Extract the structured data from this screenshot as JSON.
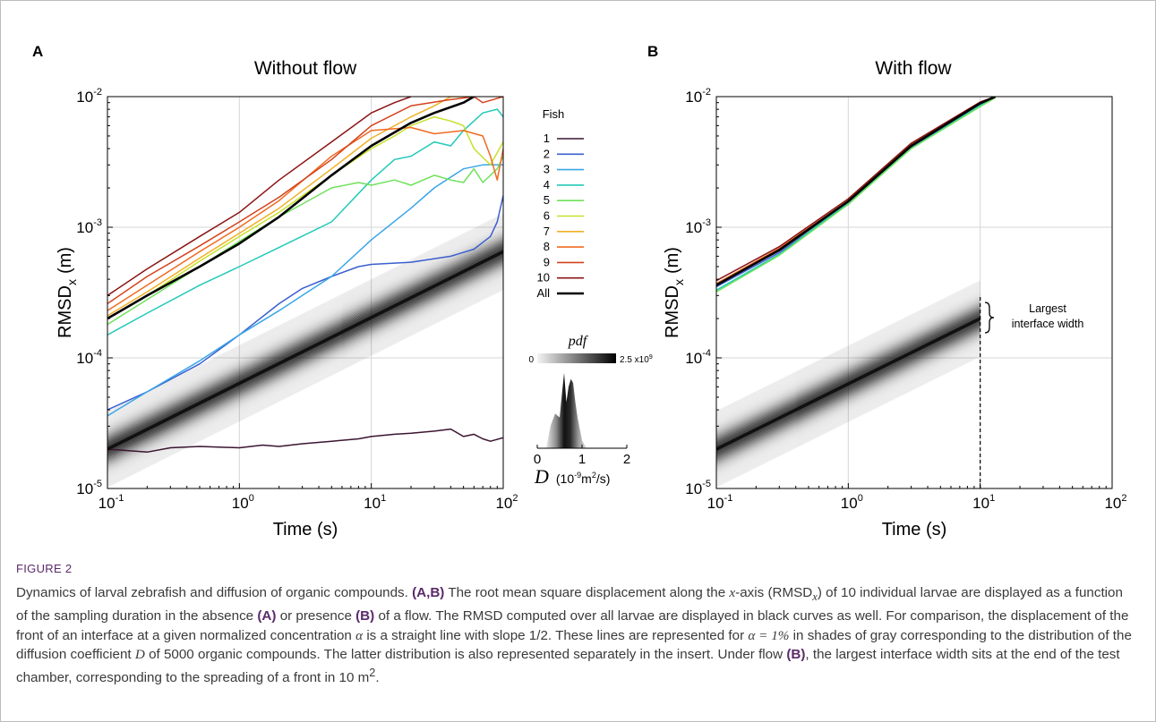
{
  "figure_label": "FIGURE 2",
  "caption": {
    "lead": "Dynamics of larval zebrafish and diffusion of organic compounds.",
    "refs_ab": "(A,B)",
    "s1": "The root mean square displacement along the",
    "x": "x",
    "s2": "-axis (RMSD",
    "sub_x": "x",
    "s3": ") of 10 individual larvae are displayed as a function of the sampling duration in the absence",
    "ref_a": "(A)",
    "s4": "or presence",
    "ref_b": "(B)",
    "s5": "of a flow. The RMSD computed over all larvae are displayed in black curves as well. For comparison, the displacement of the front of an interface at a given normalized concentration",
    "alpha": "α",
    "s6": "is a straight line with slope 1/2. These lines are represented for",
    "alpha_eq": "α = 1%",
    "s7": "in shades of gray corresponding to the distribution of the diffusion coefficient",
    "d": "D",
    "s8": "of 5000 organic compounds. The latter distribution is also represented separately in the insert. Under flow",
    "ref_b2": "(B)",
    "s9": ", the largest interface width sits at the end of the test chamber, corresponding to the spreading of a front in 10 m",
    "sup2": "2",
    "s10": "."
  },
  "chart_data": [
    {
      "panel": "A",
      "type": "line",
      "title": "Without flow",
      "xlabel": "Time (s)",
      "ylabel": "RMSD",
      "ylabel_sub": "x",
      "ylabel_unit": "(m)",
      "x_scale": "log",
      "y_scale": "log",
      "xlim": [
        0.1,
        100
      ],
      "ylim": [
        1e-05,
        0.01
      ],
      "x_ticks": [
        {
          "v": 0.1,
          "base": "10",
          "exp": "-1"
        },
        {
          "v": 1,
          "base": "10",
          "exp": "0"
        },
        {
          "v": 10,
          "base": "10",
          "exp": "1"
        },
        {
          "v": 100,
          "base": "10",
          "exp": "2"
        }
      ],
      "y_ticks": [
        {
          "v": 1e-05,
          "base": "10",
          "exp": "-5"
        },
        {
          "v": 0.0001,
          "base": "10",
          "exp": "-4"
        },
        {
          "v": 0.001,
          "base": "10",
          "exp": "-3"
        },
        {
          "v": 0.01,
          "base": "10",
          "exp": "-2"
        }
      ],
      "grid": true,
      "legend_title": "Fish",
      "legend_position": "right",
      "diffusion_band": {
        "x": [
          0.1,
          100
        ],
        "y_center": [
          2e-05,
          0.00065
        ],
        "slope": 0.5
      },
      "series": [
        {
          "name": "1",
          "color": "#3a1530",
          "x": [
            0.1,
            0.2,
            0.3,
            0.5,
            1,
            1.5,
            2,
            3,
            5,
            8,
            10,
            15,
            20,
            30,
            40,
            50,
            60,
            70,
            80,
            100
          ],
          "y": [
            2e-05,
            1.9e-05,
            2.05e-05,
            2.1e-05,
            2.05e-05,
            2.15e-05,
            2.1e-05,
            2.2e-05,
            2.3e-05,
            2.4e-05,
            2.5e-05,
            2.6e-05,
            2.65e-05,
            2.75e-05,
            2.85e-05,
            2.5e-05,
            2.6e-05,
            2.4e-05,
            2.3e-05,
            2.45e-05
          ]
        },
        {
          "name": "2",
          "color": "#3a5fd0",
          "x": [
            0.1,
            0.2,
            0.5,
            1,
            2,
            3,
            5,
            8,
            10,
            20,
            40,
            60,
            80,
            90,
            100
          ],
          "y": [
            4e-05,
            5.5e-05,
            9e-05,
            0.00015,
            0.00026,
            0.00034,
            0.00042,
            0.0005,
            0.00052,
            0.00054,
            0.0006,
            0.00068,
            0.00085,
            0.0011,
            0.00175
          ]
        },
        {
          "name": "3",
          "color": "#3aa6e8",
          "x": [
            0.1,
            0.2,
            0.5,
            1,
            2,
            3,
            5,
            10,
            20,
            30,
            50,
            70,
            100
          ],
          "y": [
            3.6e-05,
            5.5e-05,
            9.5e-05,
            0.00015,
            0.00023,
            0.0003,
            0.00042,
            0.0008,
            0.0014,
            0.002,
            0.0028,
            0.003,
            0.003
          ]
        },
        {
          "name": "4",
          "color": "#22c9b8",
          "x": [
            0.1,
            0.2,
            0.5,
            1,
            2,
            5,
            10,
            15,
            20,
            30,
            40,
            50,
            70,
            90,
            100
          ],
          "y": [
            0.00015,
            0.00022,
            0.00036,
            0.0005,
            0.0007,
            0.0011,
            0.0023,
            0.0033,
            0.0035,
            0.0045,
            0.0042,
            0.0055,
            0.0075,
            0.008,
            0.007
          ]
        },
        {
          "name": "5",
          "color": "#6fe25a",
          "x": [
            0.1,
            0.2,
            0.5,
            1,
            2,
            5,
            8,
            10,
            15,
            20,
            30,
            40,
            50,
            60,
            70,
            90,
            100
          ],
          "y": [
            0.00018,
            0.00028,
            0.0005,
            0.00078,
            0.0012,
            0.002,
            0.0022,
            0.0021,
            0.0023,
            0.0021,
            0.0025,
            0.0023,
            0.0022,
            0.0028,
            0.0022,
            0.0028,
            0.0035
          ]
        },
        {
          "name": "6",
          "color": "#c7e02a",
          "x": [
            0.1,
            0.2,
            0.5,
            1,
            2,
            5,
            10,
            15,
            20,
            30,
            40,
            50,
            60,
            80,
            100
          ],
          "y": [
            0.0002,
            0.0003,
            0.00055,
            0.00085,
            0.0013,
            0.0025,
            0.004,
            0.005,
            0.006,
            0.007,
            0.0065,
            0.006,
            0.004,
            0.003,
            0.0045
          ]
        },
        {
          "name": "7",
          "color": "#f2b025",
          "x": [
            0.1,
            0.2,
            0.5,
            1,
            2,
            5,
            10,
            20,
            30,
            40,
            50
          ],
          "y": [
            0.00021,
            0.00032,
            0.00058,
            0.0009,
            0.0014,
            0.0028,
            0.0048,
            0.007,
            0.0085,
            0.01,
            0.01
          ]
        },
        {
          "name": "8",
          "color": "#f06a20",
          "x": [
            0.1,
            0.2,
            0.5,
            1,
            2,
            5,
            10,
            20,
            30,
            50,
            70,
            80,
            90,
            100
          ],
          "y": [
            0.00023,
            0.00036,
            0.00065,
            0.001,
            0.0016,
            0.0035,
            0.0055,
            0.0058,
            0.0052,
            0.0055,
            0.005,
            0.0035,
            0.0023,
            0.004
          ]
        },
        {
          "name": "9",
          "color": "#d3421c",
          "x": [
            0.1,
            0.2,
            0.5,
            1,
            2,
            5,
            10,
            20,
            40,
            60,
            70,
            100
          ],
          "y": [
            0.00026,
            0.00042,
            0.00072,
            0.0011,
            0.0017,
            0.0033,
            0.006,
            0.0085,
            0.0095,
            0.01,
            0.009,
            0.01
          ]
        },
        {
          "name": "10",
          "color": "#8a1414",
          "x": [
            0.1,
            0.2,
            0.5,
            1,
            2,
            5,
            10,
            15,
            20
          ],
          "y": [
            0.0003,
            0.00048,
            0.00085,
            0.0013,
            0.0023,
            0.0045,
            0.0075,
            0.009,
            0.01
          ]
        },
        {
          "name": "All",
          "color": "#000000",
          "x": [
            0.1,
            0.2,
            0.5,
            1,
            2,
            5,
            10,
            20,
            30,
            50,
            60
          ],
          "y": [
            0.0002,
            0.0003,
            0.0005,
            0.00075,
            0.0012,
            0.0025,
            0.0042,
            0.0063,
            0.0075,
            0.009,
            0.01
          ]
        }
      ]
    },
    {
      "panel": "B",
      "type": "line",
      "title": "With flow",
      "xlabel": "Time (s)",
      "ylabel": "RMSD",
      "ylabel_sub": "x",
      "ylabel_unit": "(m)",
      "x_scale": "log",
      "y_scale": "log",
      "xlim": [
        0.1,
        100
      ],
      "ylim": [
        1e-05,
        0.01
      ],
      "x_ticks": [
        {
          "v": 0.1,
          "base": "10",
          "exp": "-1"
        },
        {
          "v": 1,
          "base": "10",
          "exp": "0"
        },
        {
          "v": 10,
          "base": "10",
          "exp": "1"
        },
        {
          "v": 100,
          "base": "10",
          "exp": "2"
        }
      ],
      "y_ticks": [
        {
          "v": 1e-05,
          "base": "10",
          "exp": "-5"
        },
        {
          "v": 0.0001,
          "base": "10",
          "exp": "-4"
        },
        {
          "v": 0.001,
          "base": "10",
          "exp": "-3"
        },
        {
          "v": 0.01,
          "base": "10",
          "exp": "-2"
        }
      ],
      "grid": true,
      "diffusion_band": {
        "x": [
          0.1,
          10
        ],
        "y_center": [
          2e-05,
          0.0002
        ],
        "slope": 0.5
      },
      "marker_line_x": 10,
      "annotation": [
        "Largest",
        "interface width"
      ],
      "series": [
        {
          "name": "1",
          "color": "#3a1530",
          "x": [
            0.1,
            0.3,
            1,
            3,
            10,
            13
          ],
          "y": [
            0.00037,
            0.00066,
            0.00155,
            0.0042,
            0.0088,
            0.01
          ]
        },
        {
          "name": "2",
          "color": "#3a5fd0",
          "x": [
            0.1,
            0.3,
            1,
            3,
            10,
            13
          ],
          "y": [
            0.00035,
            0.00064,
            0.0015,
            0.0041,
            0.0087,
            0.01
          ]
        },
        {
          "name": "4",
          "color": "#22c9b8",
          "x": [
            0.1,
            0.3,
            1,
            3,
            10,
            13
          ],
          "y": [
            0.00033,
            0.00062,
            0.00155,
            0.004,
            0.0086,
            0.01
          ]
        },
        {
          "name": "5",
          "color": "#6fe25a",
          "x": [
            0.1,
            0.3,
            1,
            3,
            10,
            13
          ],
          "y": [
            0.00032,
            0.00061,
            0.0015,
            0.004,
            0.0084,
            0.0098
          ]
        },
        {
          "name": "6",
          "color": "#c7e02a",
          "x": [
            0.1,
            0.3,
            1,
            3,
            10,
            13
          ],
          "y": [
            0.00036,
            0.00068,
            0.0016,
            0.0043,
            0.009,
            0.01
          ]
        },
        {
          "name": "8",
          "color": "#f06a20",
          "x": [
            0.1,
            0.3,
            1,
            3,
            10,
            13
          ],
          "y": [
            0.00037,
            0.00069,
            0.0016,
            0.0043,
            0.0089,
            0.01
          ]
        },
        {
          "name": "10",
          "color": "#8a1414",
          "x": [
            0.1,
            0.3,
            1,
            3,
            10,
            13
          ],
          "y": [
            0.00039,
            0.00071,
            0.00165,
            0.0044,
            0.0091,
            0.01
          ]
        },
        {
          "name": "All",
          "color": "#000000",
          "x": [
            0.1,
            0.3,
            1,
            3,
            10,
            13
          ],
          "y": [
            0.00036,
            0.00067,
            0.00158,
            0.0042,
            0.0089,
            0.01
          ]
        }
      ]
    },
    {
      "panel": "inset",
      "type": "area",
      "title": "pdf",
      "xlabel_symbol": "D",
      "xlabel_unit": "(10",
      "xlabel_exp": "-9",
      "xlabel_rest": "m",
      "xlabel_sq": "2",
      "xlabel_tail": "/s)",
      "xlim": [
        0,
        2
      ],
      "x_ticks": [
        "0",
        "1",
        "2"
      ],
      "colorbar_min": "0",
      "colorbar_max": "2.5 x10",
      "colorbar_max_exp": "9",
      "x": [
        0.2,
        0.3,
        0.4,
        0.5,
        0.55,
        0.6,
        0.65,
        0.7,
        0.75,
        0.8,
        0.85,
        0.9,
        1.0,
        1.1
      ],
      "values": [
        0.0,
        0.3,
        0.45,
        0.4,
        0.7,
        0.98,
        0.6,
        0.8,
        0.9,
        0.85,
        0.6,
        0.4,
        0.1,
        0.0
      ]
    }
  ]
}
